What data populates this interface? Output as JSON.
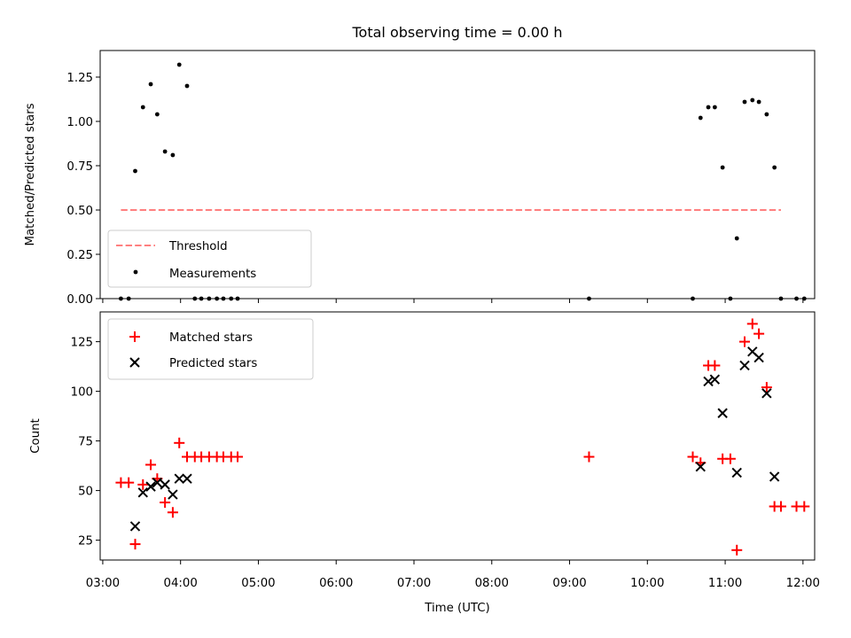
{
  "chart_data": [
    {
      "type": "scatter",
      "title": "Total observing time = 0.00 h",
      "xlabel": "",
      "ylabel": "Matched/Predicted stars",
      "ylim": [
        0.0,
        1.4
      ],
      "y_ticks": [
        "0.00",
        "0.25",
        "0.50",
        "0.75",
        "1.00",
        "1.25"
      ],
      "xlim": [
        "02:58",
        "12:09"
      ],
      "x_unit": "UTC time (h:mm)",
      "legend_position": "lower-left",
      "legend": [
        "Threshold",
        "Measurements"
      ],
      "threshold": {
        "name": "Threshold",
        "value": 0.5,
        "x_range": [
          "03:14",
          "11:43"
        ],
        "color": "#ff7f7f",
        "style": "dashed"
      },
      "series": [
        {
          "name": "Measurements",
          "color": "#000000",
          "marker": "dot",
          "points": [
            [
              "03:14",
              0.0
            ],
            [
              "03:20",
              0.0
            ],
            [
              "03:25",
              0.72
            ],
            [
              "03:31",
              1.08
            ],
            [
              "03:37",
              1.21
            ],
            [
              "03:42",
              1.04
            ],
            [
              "03:48",
              0.83
            ],
            [
              "03:54",
              0.81
            ],
            [
              "03:59",
              1.32
            ],
            [
              "04:05",
              1.2
            ],
            [
              "04:11",
              0.0
            ],
            [
              "04:16",
              0.0
            ],
            [
              "04:22",
              0.0
            ],
            [
              "04:28",
              0.0
            ],
            [
              "04:33",
              0.0
            ],
            [
              "04:39",
              0.0
            ],
            [
              "04:44",
              0.0
            ],
            [
              "09:15",
              0.0
            ],
            [
              "10:35",
              0.0
            ],
            [
              "10:41",
              1.02
            ],
            [
              "10:47",
              1.08
            ],
            [
              "10:52",
              1.08
            ],
            [
              "10:58",
              0.74
            ],
            [
              "11:04",
              0.0
            ],
            [
              "11:09",
              0.34
            ],
            [
              "11:15",
              1.11
            ],
            [
              "11:21",
              1.12
            ],
            [
              "11:26",
              1.11
            ],
            [
              "11:32",
              1.04
            ],
            [
              "11:38",
              0.74
            ],
            [
              "11:43",
              0.0
            ],
            [
              "11:55",
              0.0
            ],
            [
              "12:01",
              0.0
            ]
          ]
        }
      ]
    },
    {
      "type": "scatter",
      "title": "",
      "xlabel": "Time (UTC)",
      "ylabel": "Count",
      "ylim": [
        15,
        140
      ],
      "y_ticks": [
        "25",
        "50",
        "75",
        "100",
        "125"
      ],
      "xlim": [
        "02:58",
        "12:09"
      ],
      "x_ticks": [
        "03:00",
        "04:00",
        "05:00",
        "06:00",
        "07:00",
        "08:00",
        "09:00",
        "10:00",
        "11:00",
        "12:00"
      ],
      "legend_position": "top-left",
      "legend": [
        "Matched stars",
        "Predicted stars"
      ],
      "series": [
        {
          "name": "Matched stars",
          "color": "#ff0000",
          "marker": "plus",
          "points": [
            [
              "03:14",
              54
            ],
            [
              "03:20",
              54
            ],
            [
              "03:25",
              23
            ],
            [
              "03:31",
              53
            ],
            [
              "03:37",
              63
            ],
            [
              "03:42",
              56
            ],
            [
              "03:48",
              44
            ],
            [
              "03:54",
              39
            ],
            [
              "03:59",
              74
            ],
            [
              "04:05",
              67
            ],
            [
              "04:11",
              67
            ],
            [
              "04:16",
              67
            ],
            [
              "04:22",
              67
            ],
            [
              "04:28",
              67
            ],
            [
              "04:33",
              67
            ],
            [
              "04:39",
              67
            ],
            [
              "04:44",
              67
            ],
            [
              "09:15",
              67
            ],
            [
              "10:35",
              67
            ],
            [
              "10:41",
              64
            ],
            [
              "10:47",
              113
            ],
            [
              "10:52",
              113
            ],
            [
              "10:58",
              66
            ],
            [
              "11:04",
              66
            ],
            [
              "11:09",
              20
            ],
            [
              "11:15",
              125
            ],
            [
              "11:21",
              134
            ],
            [
              "11:26",
              129
            ],
            [
              "11:32",
              102
            ],
            [
              "11:38",
              42
            ],
            [
              "11:43",
              42
            ],
            [
              "11:55",
              42
            ],
            [
              "12:01",
              42
            ]
          ]
        },
        {
          "name": "Predicted stars",
          "color": "#000000",
          "marker": "x",
          "points": [
            [
              "03:25",
              32
            ],
            [
              "03:31",
              49
            ],
            [
              "03:37",
              52
            ],
            [
              "03:42",
              54
            ],
            [
              "03:48",
              53
            ],
            [
              "03:54",
              48
            ],
            [
              "03:59",
              56
            ],
            [
              "04:05",
              56
            ],
            [
              "10:41",
              62
            ],
            [
              "10:47",
              105
            ],
            [
              "10:52",
              106
            ],
            [
              "10:58",
              89
            ],
            [
              "11:09",
              59
            ],
            [
              "11:15",
              113
            ],
            [
              "11:21",
              120
            ],
            [
              "11:26",
              117
            ],
            [
              "11:32",
              99
            ],
            [
              "11:38",
              57
            ]
          ]
        }
      ]
    }
  ]
}
